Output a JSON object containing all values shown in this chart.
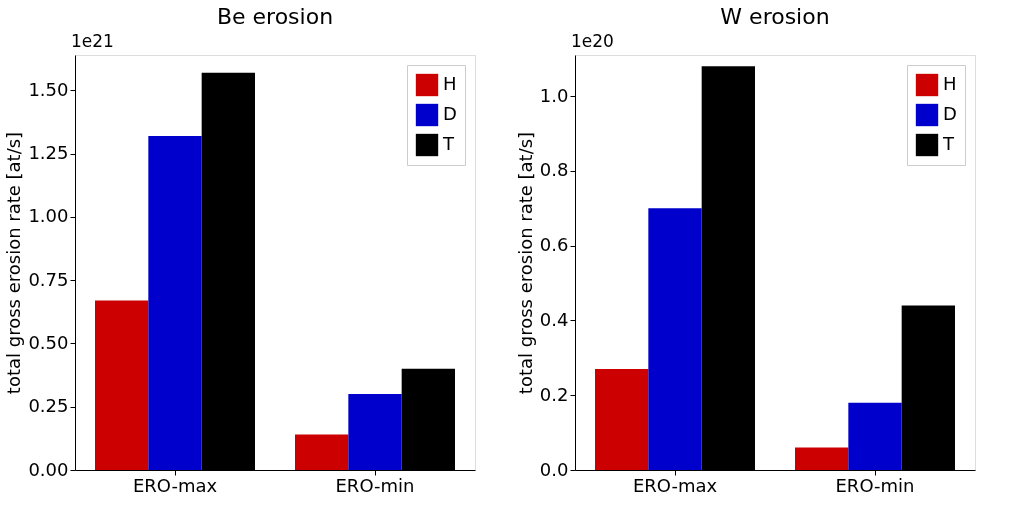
{
  "chart_data": [
    {
      "type": "bar",
      "title": "Be erosion",
      "ylabel": "total gross erosion rate [at/s]",
      "annotations": [
        "1e21"
      ],
      "categories": [
        "ERO-max",
        "ERO-min"
      ],
      "series": [
        {
          "name": "H",
          "color": "#cc0000",
          "values": [
            0.67,
            0.14
          ]
        },
        {
          "name": "D",
          "color": "#0000cc",
          "values": [
            1.32,
            0.3
          ]
        },
        {
          "name": "T",
          "color": "#000000",
          "values": [
            1.57,
            0.4
          ]
        }
      ],
      "ylim": [
        0,
        1.64
      ],
      "yticks": [
        {
          "value": 0,
          "label": "0.00"
        },
        0.25,
        {
          "value": 0.5,
          "label": "0.50"
        },
        0.75,
        {
          "value": 1,
          "label": "1.00"
        },
        1.25,
        {
          "value": 1.5,
          "label": "1.50"
        }
      ],
      "grid": false,
      "legend": "top right"
    },
    {
      "type": "bar",
      "title": "W erosion",
      "ylabel": "total gross erosion rate [at/s]",
      "annotations": [
        "1e20"
      ],
      "categories": [
        "ERO-max",
        "ERO-min"
      ],
      "series": [
        {
          "name": "H",
          "color": "#cc0000",
          "values": [
            0.27,
            0.06
          ]
        },
        {
          "name": "D",
          "color": "#0000cc",
          "values": [
            0.7,
            0.18
          ]
        },
        {
          "name": "T",
          "color": "#000000",
          "values": [
            1.08,
            0.44
          ]
        }
      ],
      "ylim": [
        0,
        1.11
      ],
      "yticks": [
        {
          "value": 0,
          "label": "0.0"
        },
        0.2,
        0.4,
        0.6,
        0.8,
        {
          "value": 1,
          "label": "1.0"
        }
      ],
      "grid": false,
      "legend": "top right"
    }
  ]
}
